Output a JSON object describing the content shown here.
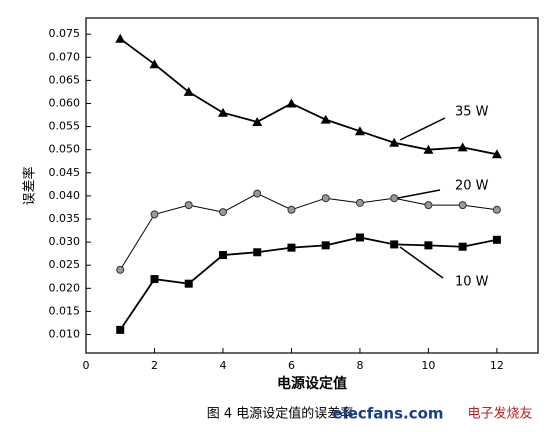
{
  "chart_data": {
    "type": "line",
    "x": [
      1,
      2,
      3,
      4,
      5,
      6,
      7,
      8,
      9,
      10,
      11,
      12
    ],
    "series": [
      {
        "name": "35 W",
        "color": "#000000",
        "marker": "triangle",
        "values": [
          0.074,
          0.0685,
          0.0625,
          0.058,
          0.056,
          0.06,
          0.0565,
          0.054,
          0.0515,
          0.05,
          0.0505,
          0.049
        ]
      },
      {
        "name": "20 W",
        "color": "#000000",
        "marker": "circle",
        "values": [
          0.024,
          0.036,
          0.038,
          0.0365,
          0.0405,
          0.037,
          0.0395,
          0.0385,
          0.0395,
          0.038,
          0.038,
          0.037
        ]
      },
      {
        "name": "10 W",
        "color": "#000000",
        "marker": "square",
        "values": [
          0.011,
          0.022,
          0.021,
          0.0272,
          0.0278,
          0.0288,
          0.0293,
          0.031,
          0.0295,
          0.0293,
          0.029,
          0.0305
        ]
      }
    ],
    "xlabel": "电源设定值",
    "ylabel": "误差率",
    "xlim": [
      0,
      13.2
    ],
    "xticks": [
      0,
      2,
      4,
      6,
      8,
      10,
      12
    ],
    "ylim": [
      0.006,
      0.0785
    ],
    "yticks": [
      {
        "value": 0.01,
        "label": "0.010"
      },
      {
        "value": 0.015,
        "label": "0.015"
      },
      {
        "value": 0.02,
        "label": "0.020"
      },
      {
        "value": 0.025,
        "label": "0.025"
      },
      {
        "value": 0.03,
        "label": "0.030"
      },
      {
        "value": 0.035,
        "label": "0.035"
      },
      {
        "value": 0.04,
        "label": "0.040"
      },
      {
        "value": 0.045,
        "label": "0.045"
      },
      {
        "value": 0.05,
        "label": "0.050"
      },
      {
        "value": 0.055,
        "label": "0.055"
      },
      {
        "value": 0.06,
        "label": "0.060"
      },
      {
        "value": 0.065,
        "label": "0.065"
      },
      {
        "value": 0.07,
        "label": "0.070"
      },
      {
        "value": 0.075,
        "label": "0.075"
      }
    ],
    "caption": "图 4 电源设定值的误差率",
    "watermark": [
      "elecfans.com",
      "电子发烧友"
    ]
  }
}
